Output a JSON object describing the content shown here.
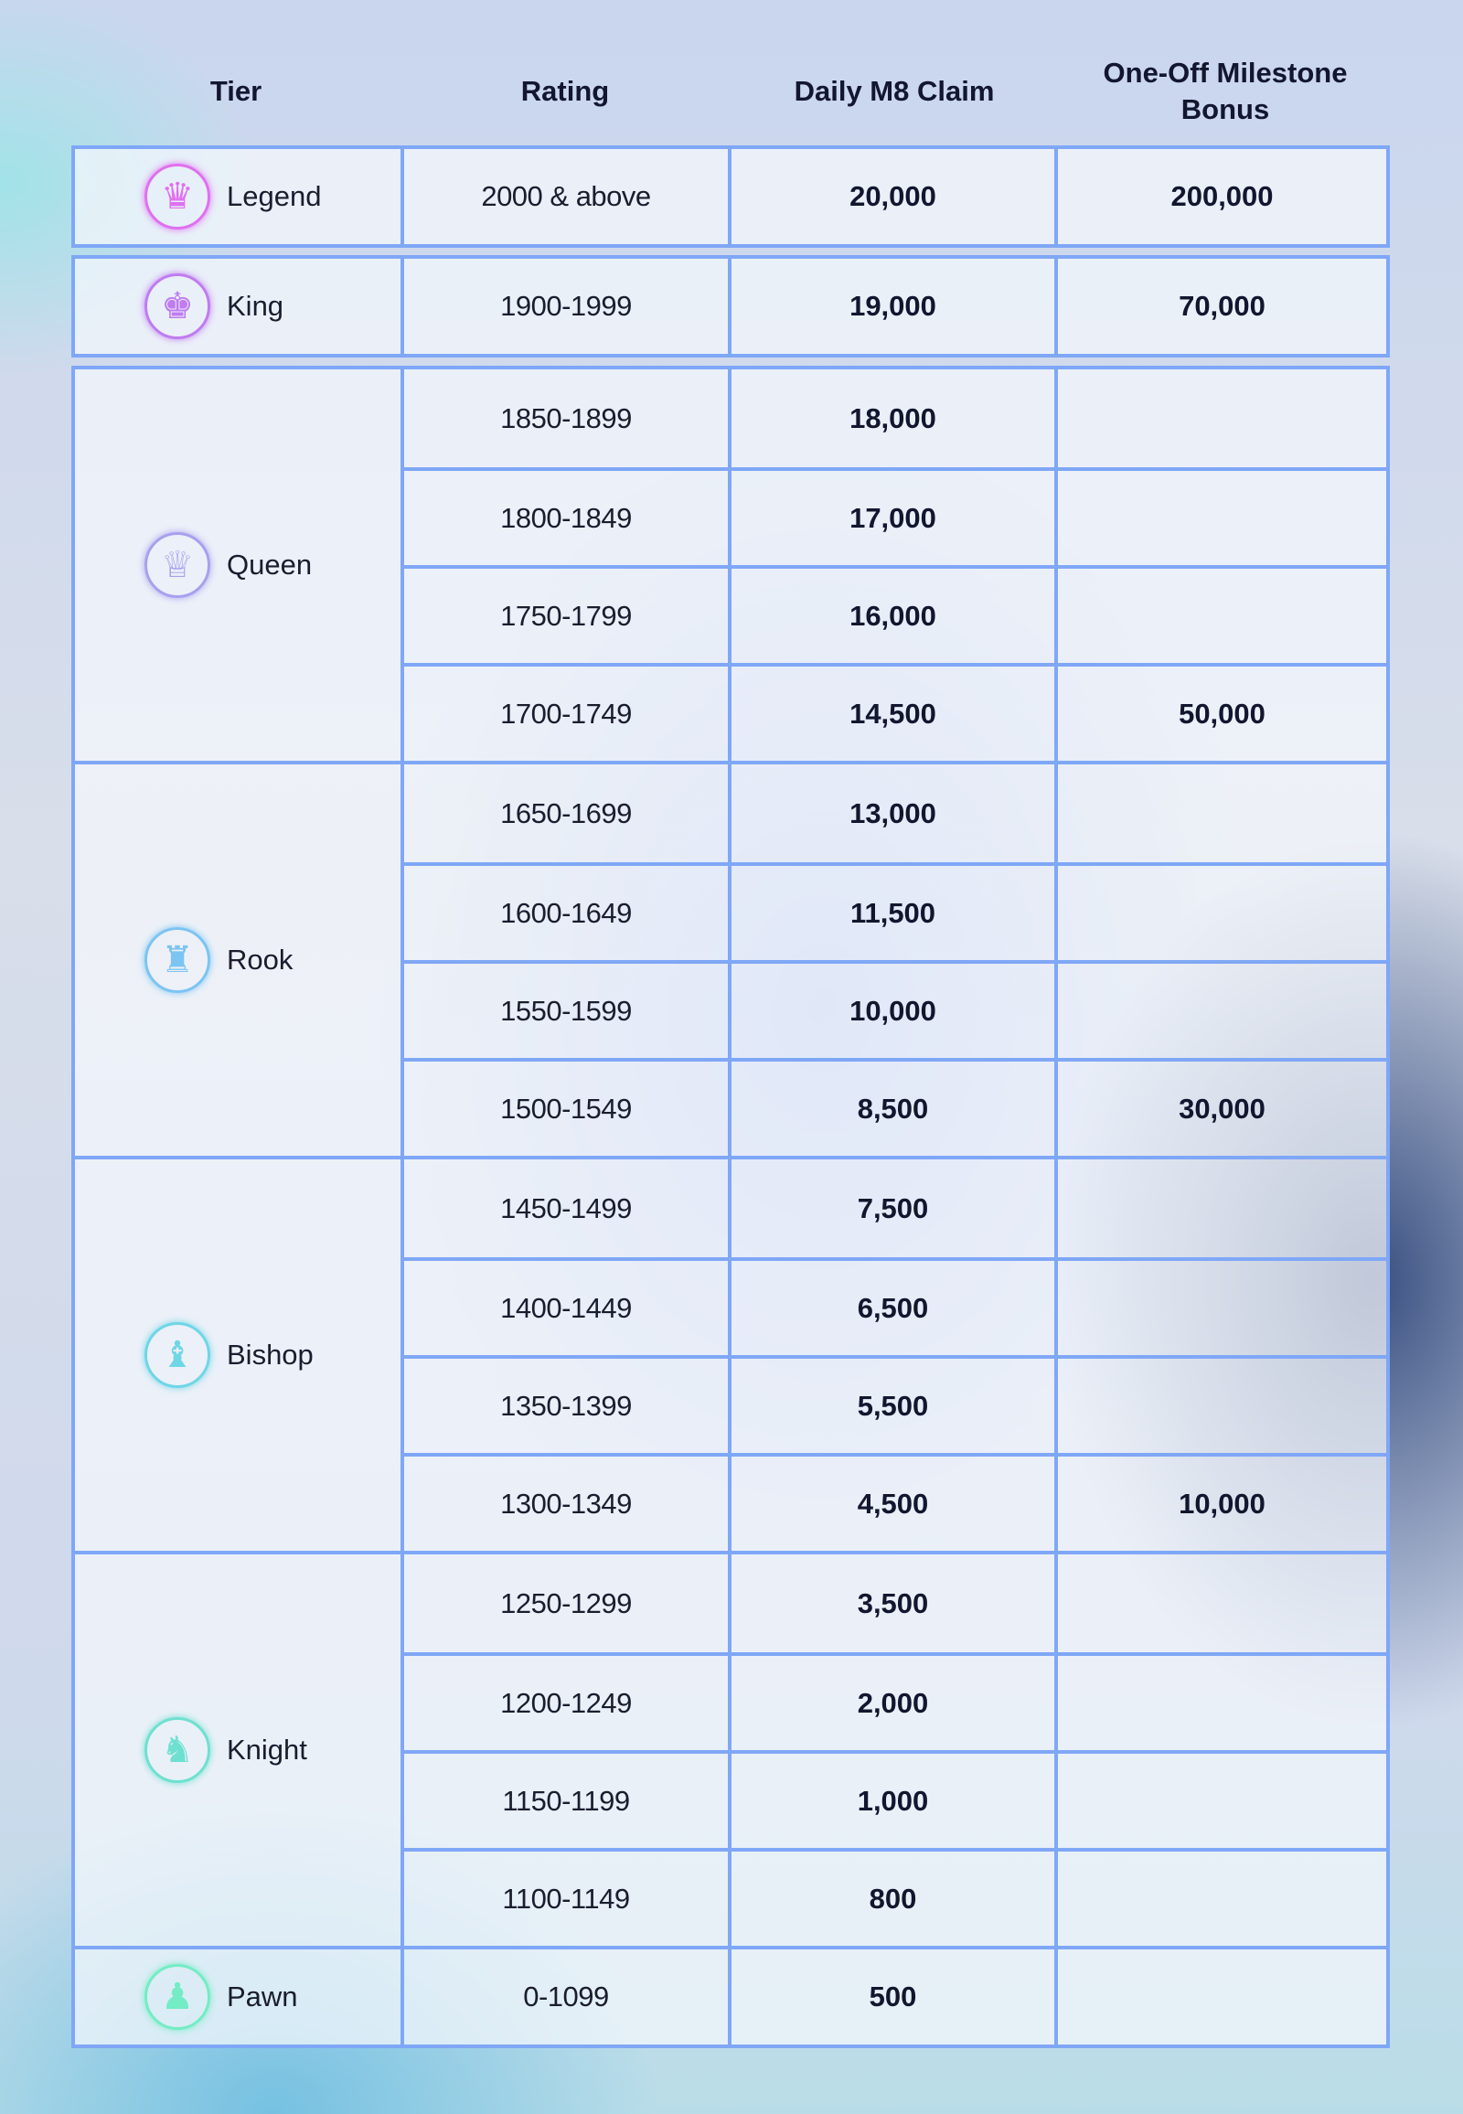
{
  "headers": {
    "tier": "Tier",
    "rating": "Rating",
    "daily": "Daily M8 Claim",
    "bonus": "One-Off Milestone Bonus"
  },
  "tiers": [
    {
      "name": "Legend",
      "icon": "penguin-crest-icon",
      "color": "#e070f0",
      "glyph": "♛",
      "rows": [
        {
          "rating": "2000 & above",
          "daily": "20,000",
          "bonus": "200,000"
        }
      ]
    },
    {
      "name": "King",
      "icon": "king-crown-icon",
      "color": "#c07cf0",
      "glyph": "♚",
      "rows": [
        {
          "rating": "1900-1999",
          "daily": "19,000",
          "bonus": "70,000"
        }
      ]
    },
    {
      "name": "Queen",
      "icon": "queen-crown-icon",
      "color": "#a8a0ee",
      "glyph": "♕",
      "rows": [
        {
          "rating": "1850-1899",
          "daily": "18,000",
          "bonus": ""
        },
        {
          "rating": "1800-1849",
          "daily": "17,000",
          "bonus": ""
        },
        {
          "rating": "1750-1799",
          "daily": "16,000",
          "bonus": ""
        },
        {
          "rating": "1700-1749",
          "daily": "14,500",
          "bonus": "50,000"
        }
      ]
    },
    {
      "name": "Rook",
      "icon": "rook-icon",
      "color": "#7cc4f2",
      "glyph": "♜",
      "rows": [
        {
          "rating": "1650-1699",
          "daily": "13,000",
          "bonus": ""
        },
        {
          "rating": "1600-1649",
          "daily": "11,500",
          "bonus": ""
        },
        {
          "rating": "1550-1599",
          "daily": "10,000",
          "bonus": ""
        },
        {
          "rating": "1500-1549",
          "daily": "8,500",
          "bonus": "30,000"
        }
      ]
    },
    {
      "name": "Bishop",
      "icon": "bishop-icon",
      "color": "#6fd6e6",
      "glyph": "♝",
      "rows": [
        {
          "rating": "1450-1499",
          "daily": "7,500",
          "bonus": ""
        },
        {
          "rating": "1400-1449",
          "daily": "6,500",
          "bonus": ""
        },
        {
          "rating": "1350-1399",
          "daily": "5,500",
          "bonus": ""
        },
        {
          "rating": "1300-1349",
          "daily": "4,500",
          "bonus": "10,000"
        }
      ]
    },
    {
      "name": "Knight",
      "icon": "knight-icon",
      "color": "#6fe0d0",
      "glyph": "♞",
      "rows": [
        {
          "rating": "1250-1299",
          "daily": "3,500",
          "bonus": ""
        },
        {
          "rating": "1200-1249",
          "daily": "2,000",
          "bonus": ""
        },
        {
          "rating": "1150-1199",
          "daily": "1,000",
          "bonus": ""
        },
        {
          "rating": "1100-1149",
          "daily": "800",
          "bonus": ""
        }
      ]
    },
    {
      "name": "Pawn",
      "icon": "pawn-icon",
      "color": "#74ecc4",
      "glyph": "♟",
      "rows": [
        {
          "rating": "0-1099",
          "daily": "500",
          "bonus": ""
        }
      ]
    }
  ],
  "border_color": "#7fa7f7"
}
